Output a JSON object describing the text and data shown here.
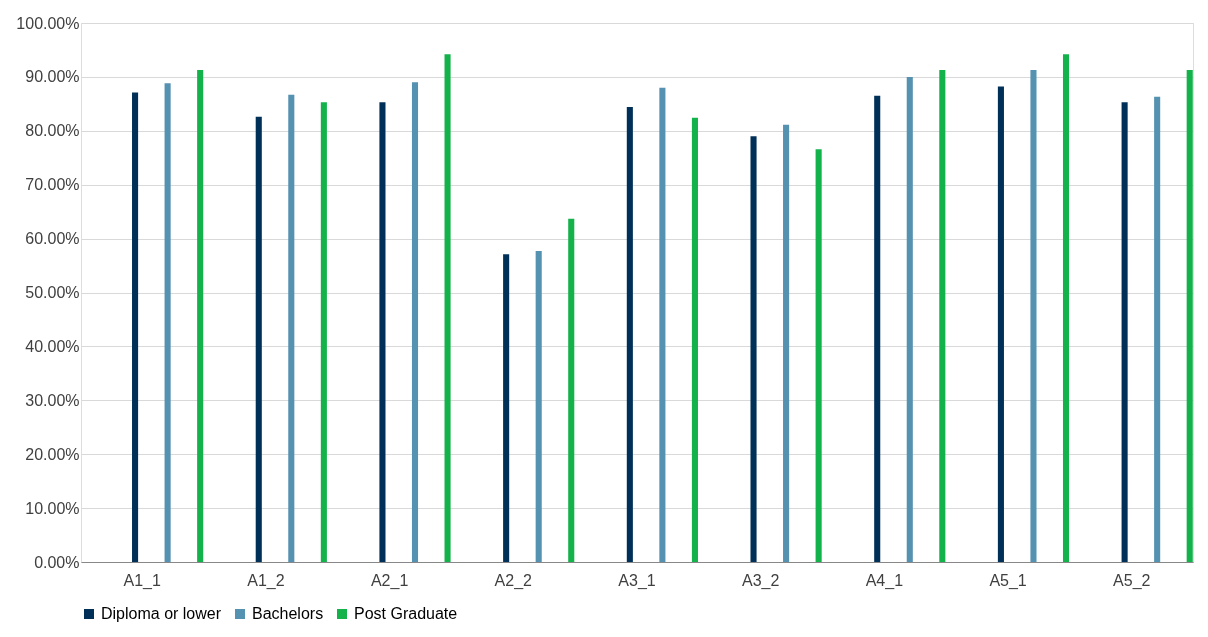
{
  "chart_data": {
    "type": "bar",
    "categories": [
      "A1_1",
      "A1_2",
      "A2_1",
      "A2_2",
      "A3_1",
      "A3_2",
      "A4_1",
      "A5_1",
      "A5_2"
    ],
    "series": [
      {
        "name": "Diploma or lower",
        "color": "#003057",
        "values": [
          87.1,
          82.6,
          85.3,
          57.1,
          84.4,
          79.0,
          86.5,
          88.2,
          85.3
        ]
      },
      {
        "name": "Bachelors",
        "color": "#5591b0",
        "values": [
          88.8,
          86.7,
          89.0,
          57.7,
          88.0,
          81.1,
          90.0,
          91.3,
          86.3
        ]
      },
      {
        "name": "Post Graduate",
        "color": "#13b24b",
        "values": [
          91.3,
          85.3,
          94.2,
          63.7,
          82.4,
          76.6,
          91.3,
          94.2,
          91.3
        ]
      }
    ],
    "ylim": [
      0,
      100
    ],
    "yticks": [
      {
        "value": 0,
        "label": "0.00%"
      },
      {
        "value": 10,
        "label": "10.00%"
      },
      {
        "value": 20,
        "label": "20.00%"
      },
      {
        "value": 30,
        "label": "30.00%"
      },
      {
        "value": 40,
        "label": "40.00%"
      },
      {
        "value": 50,
        "label": "50.00%"
      },
      {
        "value": 60,
        "label": "60.00%"
      },
      {
        "value": 70,
        "label": "70.00%"
      },
      {
        "value": 80,
        "label": "80.00%"
      },
      {
        "value": 90,
        "label": "90.00%"
      },
      {
        "value": 100,
        "label": "100.00%"
      }
    ],
    "grid": "y",
    "legend": "bottom"
  }
}
